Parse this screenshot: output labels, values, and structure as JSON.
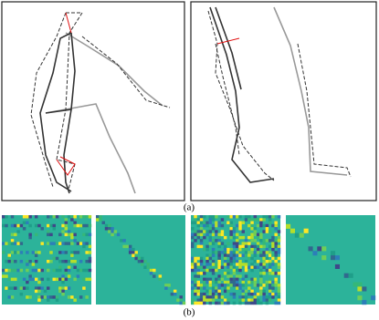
{
  "figure": {
    "panel_a_caption": "(a)",
    "panel_b_caption": "(b)"
  }
}
